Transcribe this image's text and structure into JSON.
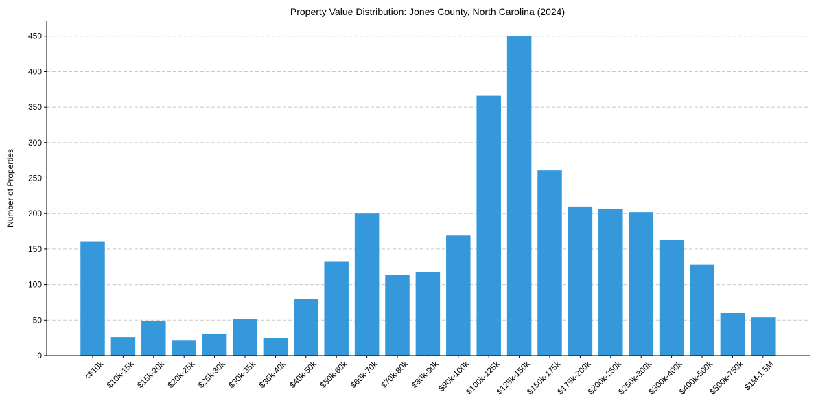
{
  "chart_data": {
    "type": "bar",
    "title": "Property Value Distribution: Jones County, North Carolina (2024)",
    "xlabel": "",
    "ylabel": "Number of Properties",
    "ylim": [
      0,
      472
    ],
    "yticks": [
      0,
      50,
      100,
      150,
      200,
      250,
      300,
      350,
      400,
      450
    ],
    "grid": "y, dashed",
    "bar_color": "#3498db",
    "categories": [
      "<$10k",
      "$10k-15k",
      "$15k-20k",
      "$20k-25k",
      "$25k-30k",
      "$30k-35k",
      "$35k-40k",
      "$40k-50k",
      "$50k-60k",
      "$60k-70k",
      "$70k-80k",
      "$80k-90k",
      "$90k-100k",
      "$100k-125k",
      "$125k-150k",
      "$150k-175k",
      "$175k-200k",
      "$200k-250k",
      "$250k-300k",
      "$300k-400k",
      "$400k-500k",
      "$500k-750k",
      "$1M-1.5M"
    ],
    "values": [
      161,
      26,
      49,
      21,
      31,
      52,
      25,
      80,
      133,
      200,
      114,
      118,
      169,
      366,
      450,
      261,
      210,
      207,
      202,
      163,
      128,
      60,
      54
    ]
  }
}
